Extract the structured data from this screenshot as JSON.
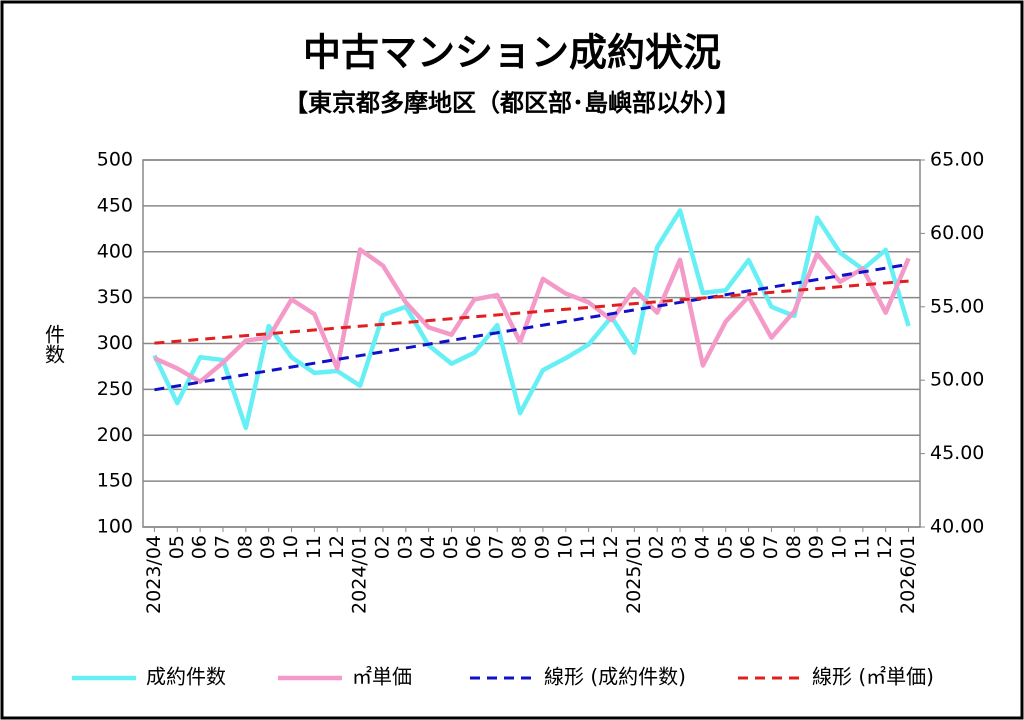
{
  "chart_data": {
    "type": "line",
    "title": "中古マンション成約状況",
    "subtitle": "【東京都多摩地区（都区部･島嶼部以外）】",
    "y_label": "件数",
    "categories": [
      "2023/04",
      "05",
      "06",
      "07",
      "08",
      "09",
      "10",
      "11",
      "12",
      "2024/01",
      "02",
      "03",
      "04",
      "05",
      "06",
      "07",
      "08",
      "09",
      "10",
      "11",
      "12",
      "2025/01",
      "02",
      "03",
      "04",
      "05",
      "06",
      "07",
      "08",
      "09",
      "10",
      "11",
      "12",
      "2026/01"
    ],
    "series": [
      {
        "name": "成約件数",
        "color": "#66f0f5",
        "axis": "y",
        "values": [
          287,
          235,
          285,
          282,
          208,
          319,
          285,
          268,
          270,
          254,
          331,
          340,
          298,
          278,
          290,
          320,
          224,
          271,
          284,
          299,
          329,
          290,
          405,
          445,
          355,
          358,
          391,
          340,
          330,
          437,
          399,
          381,
          402,
          319
        ]
      },
      {
        "name": "㎡単価",
        "color": "#f49ac8",
        "axis": "y2",
        "values": [
          51.5,
          50.8,
          49.9,
          51.2,
          52.7,
          52.9,
          55.5,
          54.5,
          50.8,
          58.9,
          57.8,
          55.3,
          53.6,
          53.1,
          55.5,
          55.8,
          52.6,
          56.9,
          55.9,
          55.3,
          54.1,
          56.2,
          54.6,
          58.2,
          51.0,
          54.0,
          55.7,
          52.9,
          54.7,
          58.6,
          56.7,
          57.6,
          54.6,
          58.3
        ]
      }
    ],
    "trendlines": [
      {
        "name": "線形 (成約件数)",
        "series": 0,
        "color": "#1010c8"
      },
      {
        "name": "線形 (㎡単価)",
        "series": 1,
        "color": "#e02020"
      }
    ],
    "ylim": [
      100,
      500
    ],
    "yticks": [
      100,
      150,
      200,
      250,
      300,
      350,
      400,
      450,
      500
    ],
    "y2lim": [
      40,
      65
    ],
    "y2ticks": [
      {
        "value": 40,
        "label": "40.00"
      },
      {
        "value": 45,
        "label": "45.00"
      },
      {
        "value": 50,
        "label": "50.00"
      },
      {
        "value": 55,
        "label": "55.00"
      },
      {
        "value": 60,
        "label": "60.00"
      },
      {
        "value": 65,
        "label": "65.00"
      }
    ],
    "grid": true,
    "legend": "bottom"
  }
}
